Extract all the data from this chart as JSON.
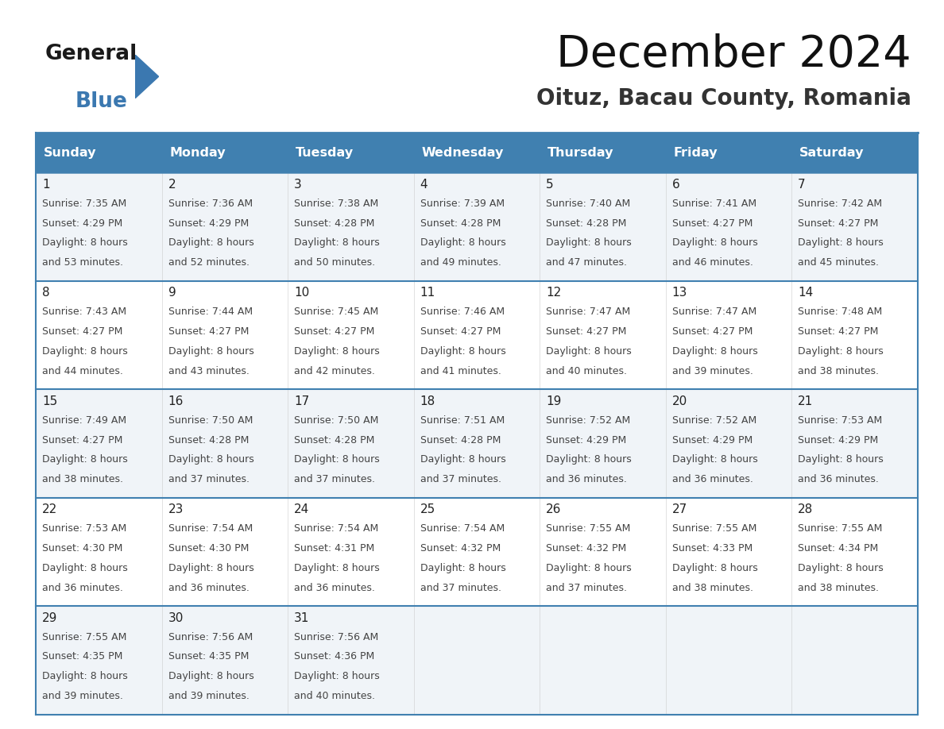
{
  "title": "December 2024",
  "subtitle": "Oituz, Bacau County, Romania",
  "header_color": "#4080B0",
  "header_text_color": "#FFFFFF",
  "border_color": "#4080B0",
  "days_of_week": [
    "Sunday",
    "Monday",
    "Tuesday",
    "Wednesday",
    "Thursday",
    "Friday",
    "Saturday"
  ],
  "calendar_data": [
    [
      {
        "day": "1",
        "sunrise": "7:35 AM",
        "sunset": "4:29 PM",
        "daylight_min": "53"
      },
      {
        "day": "2",
        "sunrise": "7:36 AM",
        "sunset": "4:29 PM",
        "daylight_min": "52"
      },
      {
        "day": "3",
        "sunrise": "7:38 AM",
        "sunset": "4:28 PM",
        "daylight_min": "50"
      },
      {
        "day": "4",
        "sunrise": "7:39 AM",
        "sunset": "4:28 PM",
        "daylight_min": "49"
      },
      {
        "day": "5",
        "sunrise": "7:40 AM",
        "sunset": "4:28 PM",
        "daylight_min": "47"
      },
      {
        "day": "6",
        "sunrise": "7:41 AM",
        "sunset": "4:27 PM",
        "daylight_min": "46"
      },
      {
        "day": "7",
        "sunrise": "7:42 AM",
        "sunset": "4:27 PM",
        "daylight_min": "45"
      }
    ],
    [
      {
        "day": "8",
        "sunrise": "7:43 AM",
        "sunset": "4:27 PM",
        "daylight_min": "44"
      },
      {
        "day": "9",
        "sunrise": "7:44 AM",
        "sunset": "4:27 PM",
        "daylight_min": "43"
      },
      {
        "day": "10",
        "sunrise": "7:45 AM",
        "sunset": "4:27 PM",
        "daylight_min": "42"
      },
      {
        "day": "11",
        "sunrise": "7:46 AM",
        "sunset": "4:27 PM",
        "daylight_min": "41"
      },
      {
        "day": "12",
        "sunrise": "7:47 AM",
        "sunset": "4:27 PM",
        "daylight_min": "40"
      },
      {
        "day": "13",
        "sunrise": "7:47 AM",
        "sunset": "4:27 PM",
        "daylight_min": "39"
      },
      {
        "day": "14",
        "sunrise": "7:48 AM",
        "sunset": "4:27 PM",
        "daylight_min": "38"
      }
    ],
    [
      {
        "day": "15",
        "sunrise": "7:49 AM",
        "sunset": "4:27 PM",
        "daylight_min": "38"
      },
      {
        "day": "16",
        "sunrise": "7:50 AM",
        "sunset": "4:28 PM",
        "daylight_min": "37"
      },
      {
        "day": "17",
        "sunrise": "7:50 AM",
        "sunset": "4:28 PM",
        "daylight_min": "37"
      },
      {
        "day": "18",
        "sunrise": "7:51 AM",
        "sunset": "4:28 PM",
        "daylight_min": "37"
      },
      {
        "day": "19",
        "sunrise": "7:52 AM",
        "sunset": "4:29 PM",
        "daylight_min": "36"
      },
      {
        "day": "20",
        "sunrise": "7:52 AM",
        "sunset": "4:29 PM",
        "daylight_min": "36"
      },
      {
        "day": "21",
        "sunrise": "7:53 AM",
        "sunset": "4:29 PM",
        "daylight_min": "36"
      }
    ],
    [
      {
        "day": "22",
        "sunrise": "7:53 AM",
        "sunset": "4:30 PM",
        "daylight_min": "36"
      },
      {
        "day": "23",
        "sunrise": "7:54 AM",
        "sunset": "4:30 PM",
        "daylight_min": "36"
      },
      {
        "day": "24",
        "sunrise": "7:54 AM",
        "sunset": "4:31 PM",
        "daylight_min": "36"
      },
      {
        "day": "25",
        "sunrise": "7:54 AM",
        "sunset": "4:32 PM",
        "daylight_min": "37"
      },
      {
        "day": "26",
        "sunrise": "7:55 AM",
        "sunset": "4:32 PM",
        "daylight_min": "37"
      },
      {
        "day": "27",
        "sunrise": "7:55 AM",
        "sunset": "4:33 PM",
        "daylight_min": "38"
      },
      {
        "day": "28",
        "sunrise": "7:55 AM",
        "sunset": "4:34 PM",
        "daylight_min": "38"
      }
    ],
    [
      {
        "day": "29",
        "sunrise": "7:55 AM",
        "sunset": "4:35 PM",
        "daylight_min": "39"
      },
      {
        "day": "30",
        "sunrise": "7:56 AM",
        "sunset": "4:35 PM",
        "daylight_min": "39"
      },
      {
        "day": "31",
        "sunrise": "7:56 AM",
        "sunset": "4:36 PM",
        "daylight_min": "40"
      },
      null,
      null,
      null,
      null
    ]
  ],
  "background_color": "#FFFFFF",
  "cell_bg_even": "#F0F4F8",
  "cell_bg_odd": "#FFFFFF",
  "text_color": "#333333",
  "day_number_color": "#222222",
  "cell_text_color": "#444444"
}
